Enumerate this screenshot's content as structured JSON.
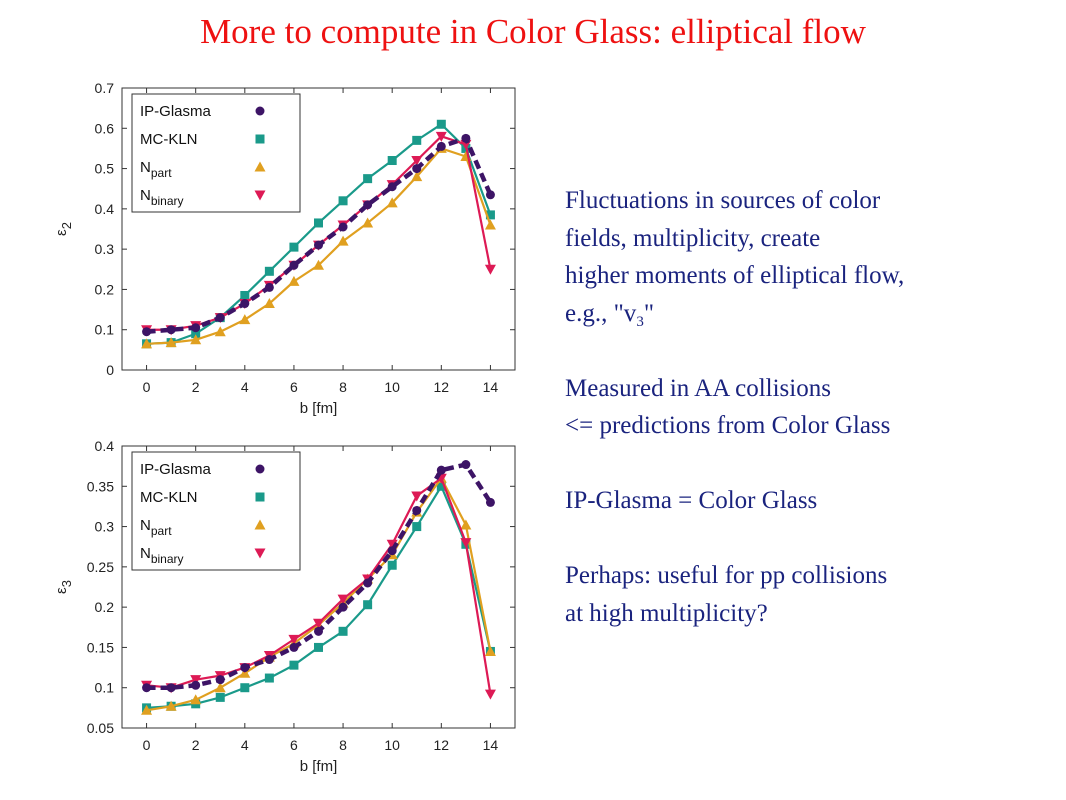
{
  "title": "More to compute in Color Glass: elliptical flow",
  "notes": {
    "line1": "Fluctuations in sources of color",
    "line2": "fields, multiplicity, create",
    "line3": "higher moments of elliptical flow,",
    "line4_prefix": "e.g., \"v",
    "line4_sub": "3",
    "line4_suffix": "\"",
    "line5": "Measured in AA collisions",
    "line6": "<= predictions from Color Glass",
    "line7": "IP-Glasma = Color Glass",
    "line8": "Perhaps: useful for pp collisions",
    "line9": "at high multiplicity?"
  },
  "colors": {
    "ip_glasma": "#3d1466",
    "mc_kln": "#1a9a8a",
    "npart": "#e0a020",
    "nbinary": "#dd1a55",
    "title": "#ee1111",
    "text": "#1a237e"
  },
  "chart_data": [
    {
      "type": "line",
      "xlabel": "b [fm]",
      "ylabel": "ε2",
      "xlim": [
        -1,
        15
      ],
      "ylim": [
        0,
        0.7
      ],
      "xticks": [
        "0",
        "2",
        "4",
        "6",
        "8",
        "10",
        "12",
        "14"
      ],
      "yticks": [
        "0",
        "0.1",
        "0.2",
        "0.3",
        "0.4",
        "0.5",
        "0.6",
        "0.7"
      ],
      "legend_position": "top-left",
      "grid": false,
      "x": [
        0,
        1,
        2,
        3,
        4,
        5,
        6,
        7,
        8,
        9,
        10,
        11,
        12,
        13,
        14
      ],
      "series": [
        {
          "name": "IP-Glasma",
          "marker": "circle",
          "style": "dashed",
          "values": [
            0.095,
            0.1,
            0.105,
            0.13,
            0.165,
            0.205,
            0.26,
            0.31,
            0.355,
            0.41,
            0.455,
            0.5,
            0.555,
            0.575,
            0.435
          ]
        },
        {
          "name": "MC-KLN",
          "marker": "square",
          "style": "solid",
          "values": [
            0.065,
            0.068,
            0.09,
            0.13,
            0.185,
            0.245,
            0.305,
            0.365,
            0.42,
            0.475,
            0.52,
            0.57,
            0.61,
            0.55,
            0.385
          ]
        },
        {
          "name": "N",
          "name_sub": "part",
          "marker": "triangle-up",
          "style": "solid",
          "values": [
            0.065,
            0.068,
            0.075,
            0.095,
            0.125,
            0.165,
            0.22,
            0.26,
            0.32,
            0.365,
            0.415,
            0.48,
            0.55,
            0.53,
            0.36
          ]
        },
        {
          "name": "N",
          "name_sub": "binary",
          "marker": "triangle-down",
          "style": "solid",
          "values": [
            0.1,
            0.1,
            0.11,
            0.13,
            0.165,
            0.21,
            0.26,
            0.31,
            0.36,
            0.41,
            0.46,
            0.52,
            0.58,
            0.56,
            0.25
          ]
        }
      ]
    },
    {
      "type": "line",
      "xlabel": "b [fm]",
      "ylabel": "ε3",
      "xlim": [
        -1,
        15
      ],
      "ylim": [
        0.05,
        0.4
      ],
      "xticks": [
        "0",
        "2",
        "4",
        "6",
        "8",
        "10",
        "12",
        "14"
      ],
      "yticks": [
        "0.05",
        "0.1",
        "0.15",
        "0.2",
        "0.25",
        "0.3",
        "0.35",
        "0.4"
      ],
      "legend_position": "top-left",
      "grid": false,
      "x": [
        0,
        1,
        2,
        3,
        4,
        5,
        6,
        7,
        8,
        9,
        10,
        11,
        12,
        13,
        14
      ],
      "series": [
        {
          "name": "IP-Glasma",
          "marker": "circle",
          "style": "dashed",
          "values": [
            0.1,
            0.1,
            0.103,
            0.11,
            0.125,
            0.135,
            0.15,
            0.17,
            0.2,
            0.23,
            0.27,
            0.32,
            0.37,
            0.377,
            0.33
          ]
        },
        {
          "name": "MC-KLN",
          "marker": "square",
          "style": "solid",
          "values": [
            0.075,
            0.077,
            0.08,
            0.088,
            0.1,
            0.112,
            0.128,
            0.15,
            0.17,
            0.203,
            0.252,
            0.3,
            0.35,
            0.278,
            0.145
          ]
        },
        {
          "name": "N",
          "name_sub": "part",
          "marker": "triangle-up",
          "style": "solid",
          "values": [
            0.072,
            0.077,
            0.085,
            0.1,
            0.118,
            0.138,
            0.155,
            0.178,
            0.205,
            0.235,
            0.265,
            0.318,
            0.36,
            0.302,
            0.145
          ]
        },
        {
          "name": "N",
          "name_sub": "binary",
          "marker": "triangle-down",
          "style": "solid",
          "values": [
            0.103,
            0.1,
            0.11,
            0.115,
            0.125,
            0.14,
            0.16,
            0.18,
            0.21,
            0.235,
            0.278,
            0.338,
            0.36,
            0.28,
            0.092
          ]
        }
      ]
    }
  ]
}
